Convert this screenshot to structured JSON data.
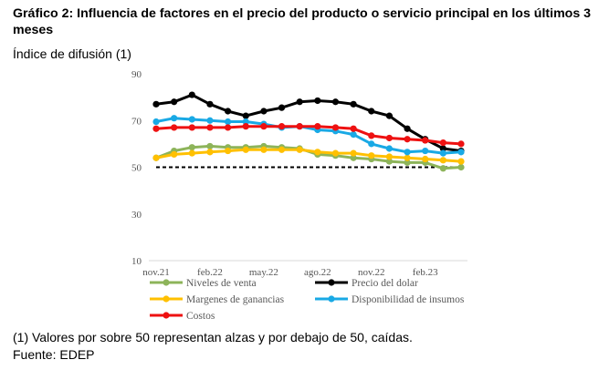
{
  "header": {
    "title": "Gráfico 2: Influencia de factores en el precio del producto o servicio principal en los últimos 3 meses",
    "subtitle": "Índice de difusión (1)"
  },
  "footer": {
    "note": "(1) Valores por sobre 50 representan alzas y por debajo de 50, caídas.",
    "source": "Fuente: EDEP"
  },
  "chart_data": {
    "type": "line",
    "title": "",
    "xlabel": "",
    "ylabel": "",
    "ylim": [
      10,
      90
    ],
    "y_ticks": [
      10,
      30,
      50,
      70,
      90
    ],
    "x": [
      "nov.21",
      "dic.21",
      "ene.22",
      "feb.22",
      "mar.22",
      "abr.22",
      "may.22",
      "jun.22",
      "jul.22",
      "ago.22",
      "sep.22",
      "oct.22",
      "nov.22",
      "dic.22",
      "ene.23",
      "feb.23",
      "mar.23",
      "abr.23"
    ],
    "x_tick_labels": [
      "nov.21",
      "feb.22",
      "may.22",
      "ago.22",
      "nov.22",
      "feb.23"
    ],
    "x_tick_indices": [
      0,
      3,
      6,
      9,
      12,
      15
    ],
    "reference_line": {
      "y": 50,
      "style": "dashed",
      "color": "#000000"
    },
    "legend_position": "bottom",
    "series": [
      {
        "name": "Niveles de venta",
        "color": "#8DB45A",
        "values": [
          54,
          57,
          58.5,
          59,
          58.5,
          58.5,
          59,
          58.5,
          58,
          55.5,
          55,
          54,
          53.5,
          52.5,
          52,
          52,
          49.5,
          50
        ]
      },
      {
        "name": "Precio del dolar",
        "color": "#000000",
        "values": [
          77,
          78,
          81,
          77,
          74,
          72,
          74,
          75.5,
          78,
          78.5,
          78,
          77,
          74,
          72,
          66.5,
          62,
          58,
          57
        ]
      },
      {
        "name": "Margenes de ganancias",
        "color": "#FFC000",
        "values": [
          54,
          55.5,
          56,
          56.5,
          57,
          57.5,
          57.5,
          57.5,
          57.5,
          56.5,
          56,
          56,
          55,
          54.5,
          54,
          53.5,
          53,
          52.5
        ]
      },
      {
        "name": "Disponibilidad de insumos",
        "color": "#19A9E5",
        "values": [
          69.5,
          71,
          70.5,
          70,
          69.5,
          69.5,
          68.5,
          67,
          67.5,
          66,
          65.5,
          64,
          60,
          58,
          56.5,
          57,
          56,
          56.5
        ]
      },
      {
        "name": "Costos",
        "color": "#EE1111",
        "values": [
          66.5,
          67,
          67,
          67,
          67,
          67.5,
          67.5,
          67.5,
          67.5,
          67.5,
          67,
          66.5,
          63.5,
          62.5,
          62,
          61.5,
          60.5,
          60
        ]
      }
    ]
  }
}
